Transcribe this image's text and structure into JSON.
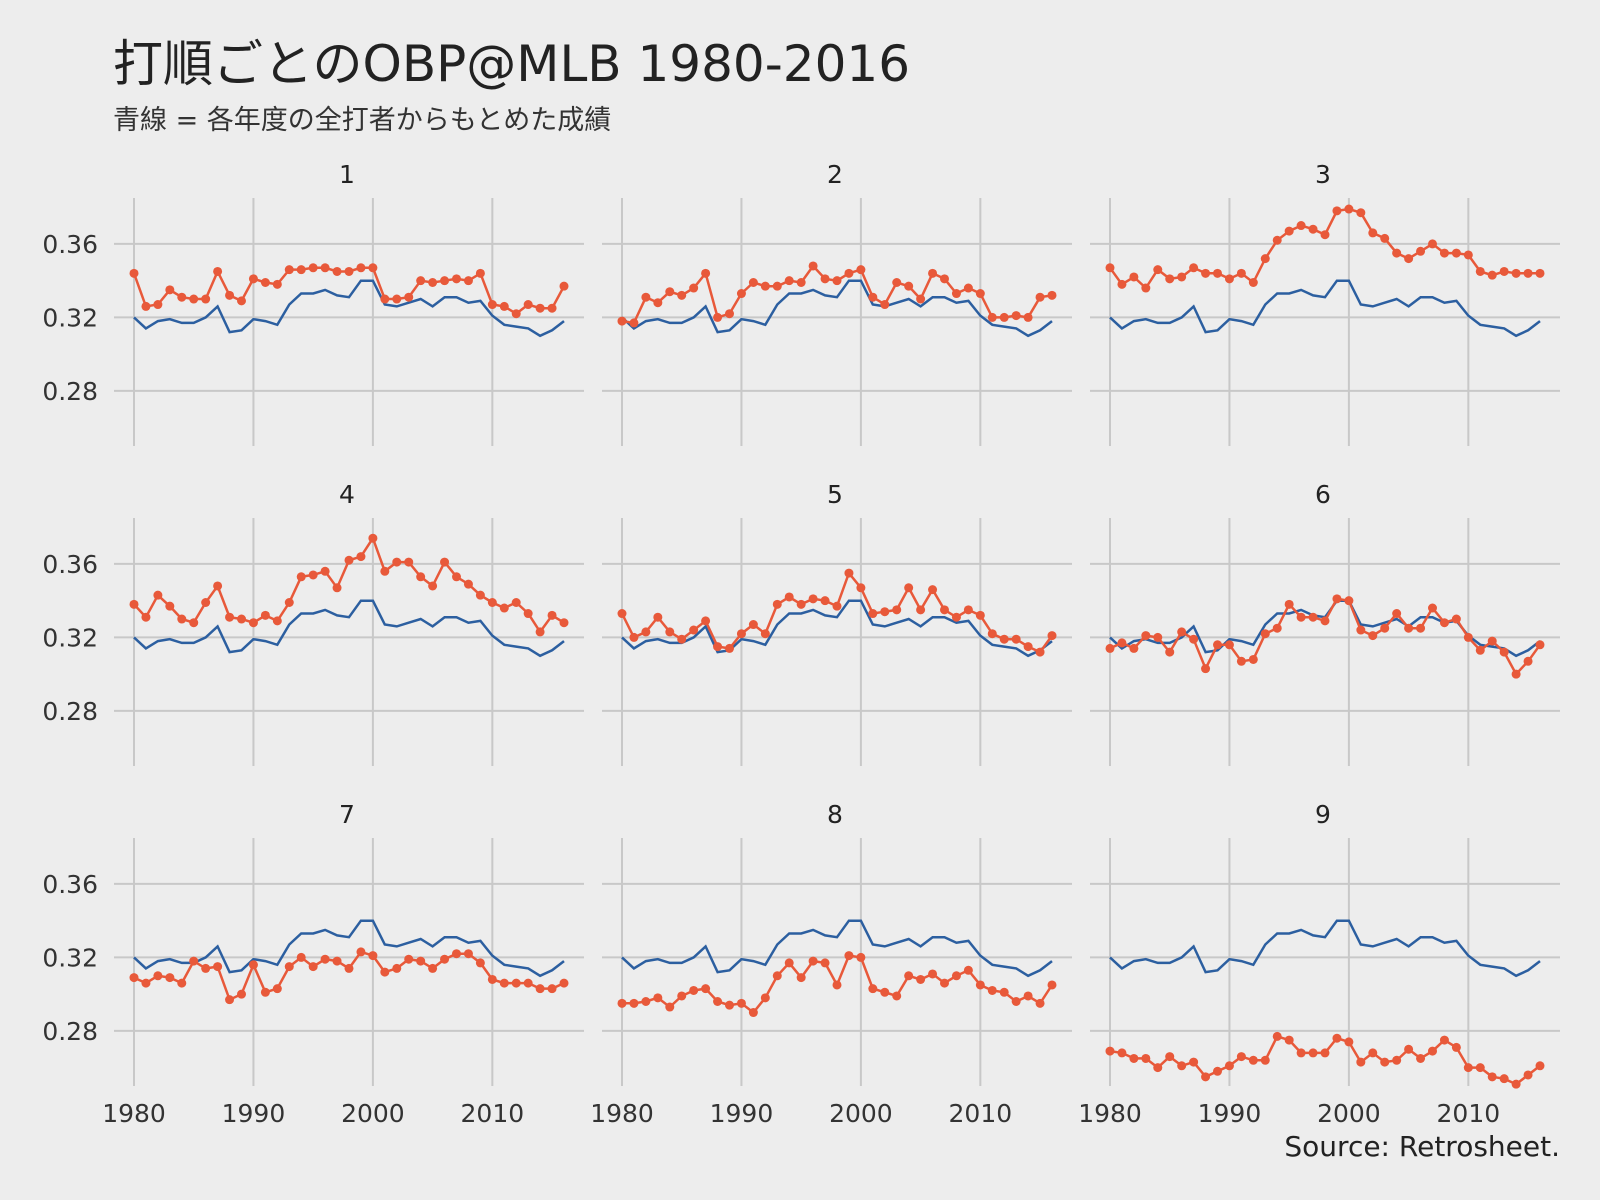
{
  "chart_data": {
    "type": "line",
    "title": "打順ごとのOBP@MLB 1980-2016",
    "subtitle": "青線 = 各年度の全打者からもとめた成績",
    "caption": "Source: Retrosheet.",
    "x_ticks": [
      1980,
      1990,
      2000,
      2010
    ],
    "y_ticks": [
      "0.36",
      "0.32",
      "0.28"
    ],
    "ylim": [
      0.25,
      0.385
    ],
    "years": [
      1980,
      1981,
      1982,
      1983,
      1984,
      1985,
      1986,
      1987,
      1988,
      1989,
      1990,
      1991,
      1992,
      1993,
      1994,
      1995,
      1996,
      1997,
      1998,
      1999,
      2000,
      2001,
      2002,
      2003,
      2004,
      2005,
      2006,
      2007,
      2008,
      2009,
      2010,
      2011,
      2012,
      2013,
      2014,
      2015,
      2016
    ],
    "league": {
      "name": "全打者",
      "color": "#2c5fa0",
      "values": [
        0.32,
        0.314,
        0.318,
        0.319,
        0.317,
        0.317,
        0.32,
        0.326,
        0.312,
        0.313,
        0.319,
        0.318,
        0.316,
        0.327,
        0.333,
        0.333,
        0.335,
        0.332,
        0.331,
        0.34,
        0.34,
        0.327,
        0.326,
        0.328,
        0.33,
        0.326,
        0.331,
        0.331,
        0.328,
        0.329,
        0.321,
        0.316,
        0.315,
        0.314,
        0.31,
        0.313,
        0.318
      ]
    },
    "series_color": "#e8593a",
    "panels": [
      {
        "label": "1",
        "values": [
          0.344,
          0.326,
          0.327,
          0.335,
          0.331,
          0.33,
          0.33,
          0.345,
          0.332,
          0.329,
          0.341,
          0.339,
          0.338,
          0.346,
          0.346,
          0.347,
          0.347,
          0.345,
          0.345,
          0.347,
          0.347,
          0.33,
          0.33,
          0.331,
          0.34,
          0.339,
          0.34,
          0.341,
          0.34,
          0.344,
          0.327,
          0.326,
          0.322,
          0.327,
          0.325,
          0.325,
          0.337
        ]
      },
      {
        "label": "2",
        "values": [
          0.318,
          0.317,
          0.331,
          0.328,
          0.334,
          0.332,
          0.336,
          0.344,
          0.32,
          0.322,
          0.333,
          0.339,
          0.337,
          0.337,
          0.34,
          0.339,
          0.348,
          0.341,
          0.34,
          0.344,
          0.346,
          0.331,
          0.327,
          0.339,
          0.337,
          0.33,
          0.344,
          0.341,
          0.333,
          0.336,
          0.333,
          0.32,
          0.32,
          0.321,
          0.32,
          0.331,
          0.332
        ]
      },
      {
        "label": "3",
        "values": [
          0.347,
          0.338,
          0.342,
          0.336,
          0.346,
          0.341,
          0.342,
          0.347,
          0.344,
          0.344,
          0.341,
          0.344,
          0.339,
          0.352,
          0.362,
          0.367,
          0.37,
          0.368,
          0.365,
          0.378,
          0.379,
          0.377,
          0.366,
          0.363,
          0.355,
          0.352,
          0.356,
          0.36,
          0.355,
          0.355,
          0.354,
          0.345,
          0.343,
          0.345,
          0.344,
          0.344,
          0.344
        ]
      },
      {
        "label": "4",
        "values": [
          0.338,
          0.331,
          0.343,
          0.337,
          0.33,
          0.328,
          0.339,
          0.348,
          0.331,
          0.33,
          0.328,
          0.332,
          0.329,
          0.339,
          0.353,
          0.354,
          0.356,
          0.347,
          0.362,
          0.364,
          0.374,
          0.356,
          0.361,
          0.361,
          0.353,
          0.348,
          0.361,
          0.353,
          0.349,
          0.343,
          0.339,
          0.336,
          0.339,
          0.333,
          0.323,
          0.332,
          0.328
        ]
      },
      {
        "label": "5",
        "values": [
          0.333,
          0.32,
          0.323,
          0.331,
          0.323,
          0.319,
          0.324,
          0.329,
          0.315,
          0.314,
          0.322,
          0.327,
          0.322,
          0.338,
          0.342,
          0.338,
          0.341,
          0.34,
          0.337,
          0.355,
          0.347,
          0.333,
          0.334,
          0.335,
          0.347,
          0.335,
          0.346,
          0.335,
          0.331,
          0.335,
          0.332,
          0.322,
          0.319,
          0.319,
          0.315,
          0.312,
          0.321
        ]
      },
      {
        "label": "6",
        "values": [
          0.314,
          0.317,
          0.314,
          0.321,
          0.32,
          0.312,
          0.323,
          0.319,
          0.303,
          0.316,
          0.316,
          0.307,
          0.308,
          0.322,
          0.325,
          0.338,
          0.331,
          0.331,
          0.329,
          0.341,
          0.34,
          0.324,
          0.321,
          0.325,
          0.333,
          0.325,
          0.325,
          0.336,
          0.328,
          0.33,
          0.32,
          0.313,
          0.318,
          0.312,
          0.3,
          0.307,
          0.316
        ]
      },
      {
        "label": "7",
        "values": [
          0.309,
          0.306,
          0.31,
          0.309,
          0.306,
          0.318,
          0.314,
          0.315,
          0.297,
          0.3,
          0.316,
          0.301,
          0.303,
          0.315,
          0.32,
          0.315,
          0.319,
          0.318,
          0.314,
          0.323,
          0.321,
          0.312,
          0.314,
          0.319,
          0.318,
          0.314,
          0.319,
          0.322,
          0.322,
          0.317,
          0.308,
          0.306,
          0.306,
          0.306,
          0.303,
          0.303,
          0.306
        ]
      },
      {
        "label": "8",
        "values": [
          0.295,
          0.295,
          0.296,
          0.298,
          0.293,
          0.299,
          0.302,
          0.303,
          0.296,
          0.294,
          0.295,
          0.29,
          0.298,
          0.31,
          0.317,
          0.309,
          0.318,
          0.317,
          0.305,
          0.321,
          0.32,
          0.303,
          0.301,
          0.299,
          0.31,
          0.308,
          0.311,
          0.306,
          0.31,
          0.313,
          0.305,
          0.302,
          0.301,
          0.296,
          0.299,
          0.295,
          0.305
        ]
      },
      {
        "label": "9",
        "values": [
          0.269,
          0.268,
          0.265,
          0.265,
          0.26,
          0.266,
          0.261,
          0.263,
          0.255,
          0.258,
          0.261,
          0.266,
          0.264,
          0.264,
          0.277,
          0.275,
          0.268,
          0.268,
          0.268,
          0.276,
          0.274,
          0.263,
          0.268,
          0.263,
          0.264,
          0.27,
          0.265,
          0.269,
          0.275,
          0.271,
          0.26,
          0.26,
          0.255,
          0.254,
          0.251,
          0.256,
          0.261
        ]
      }
    ]
  }
}
